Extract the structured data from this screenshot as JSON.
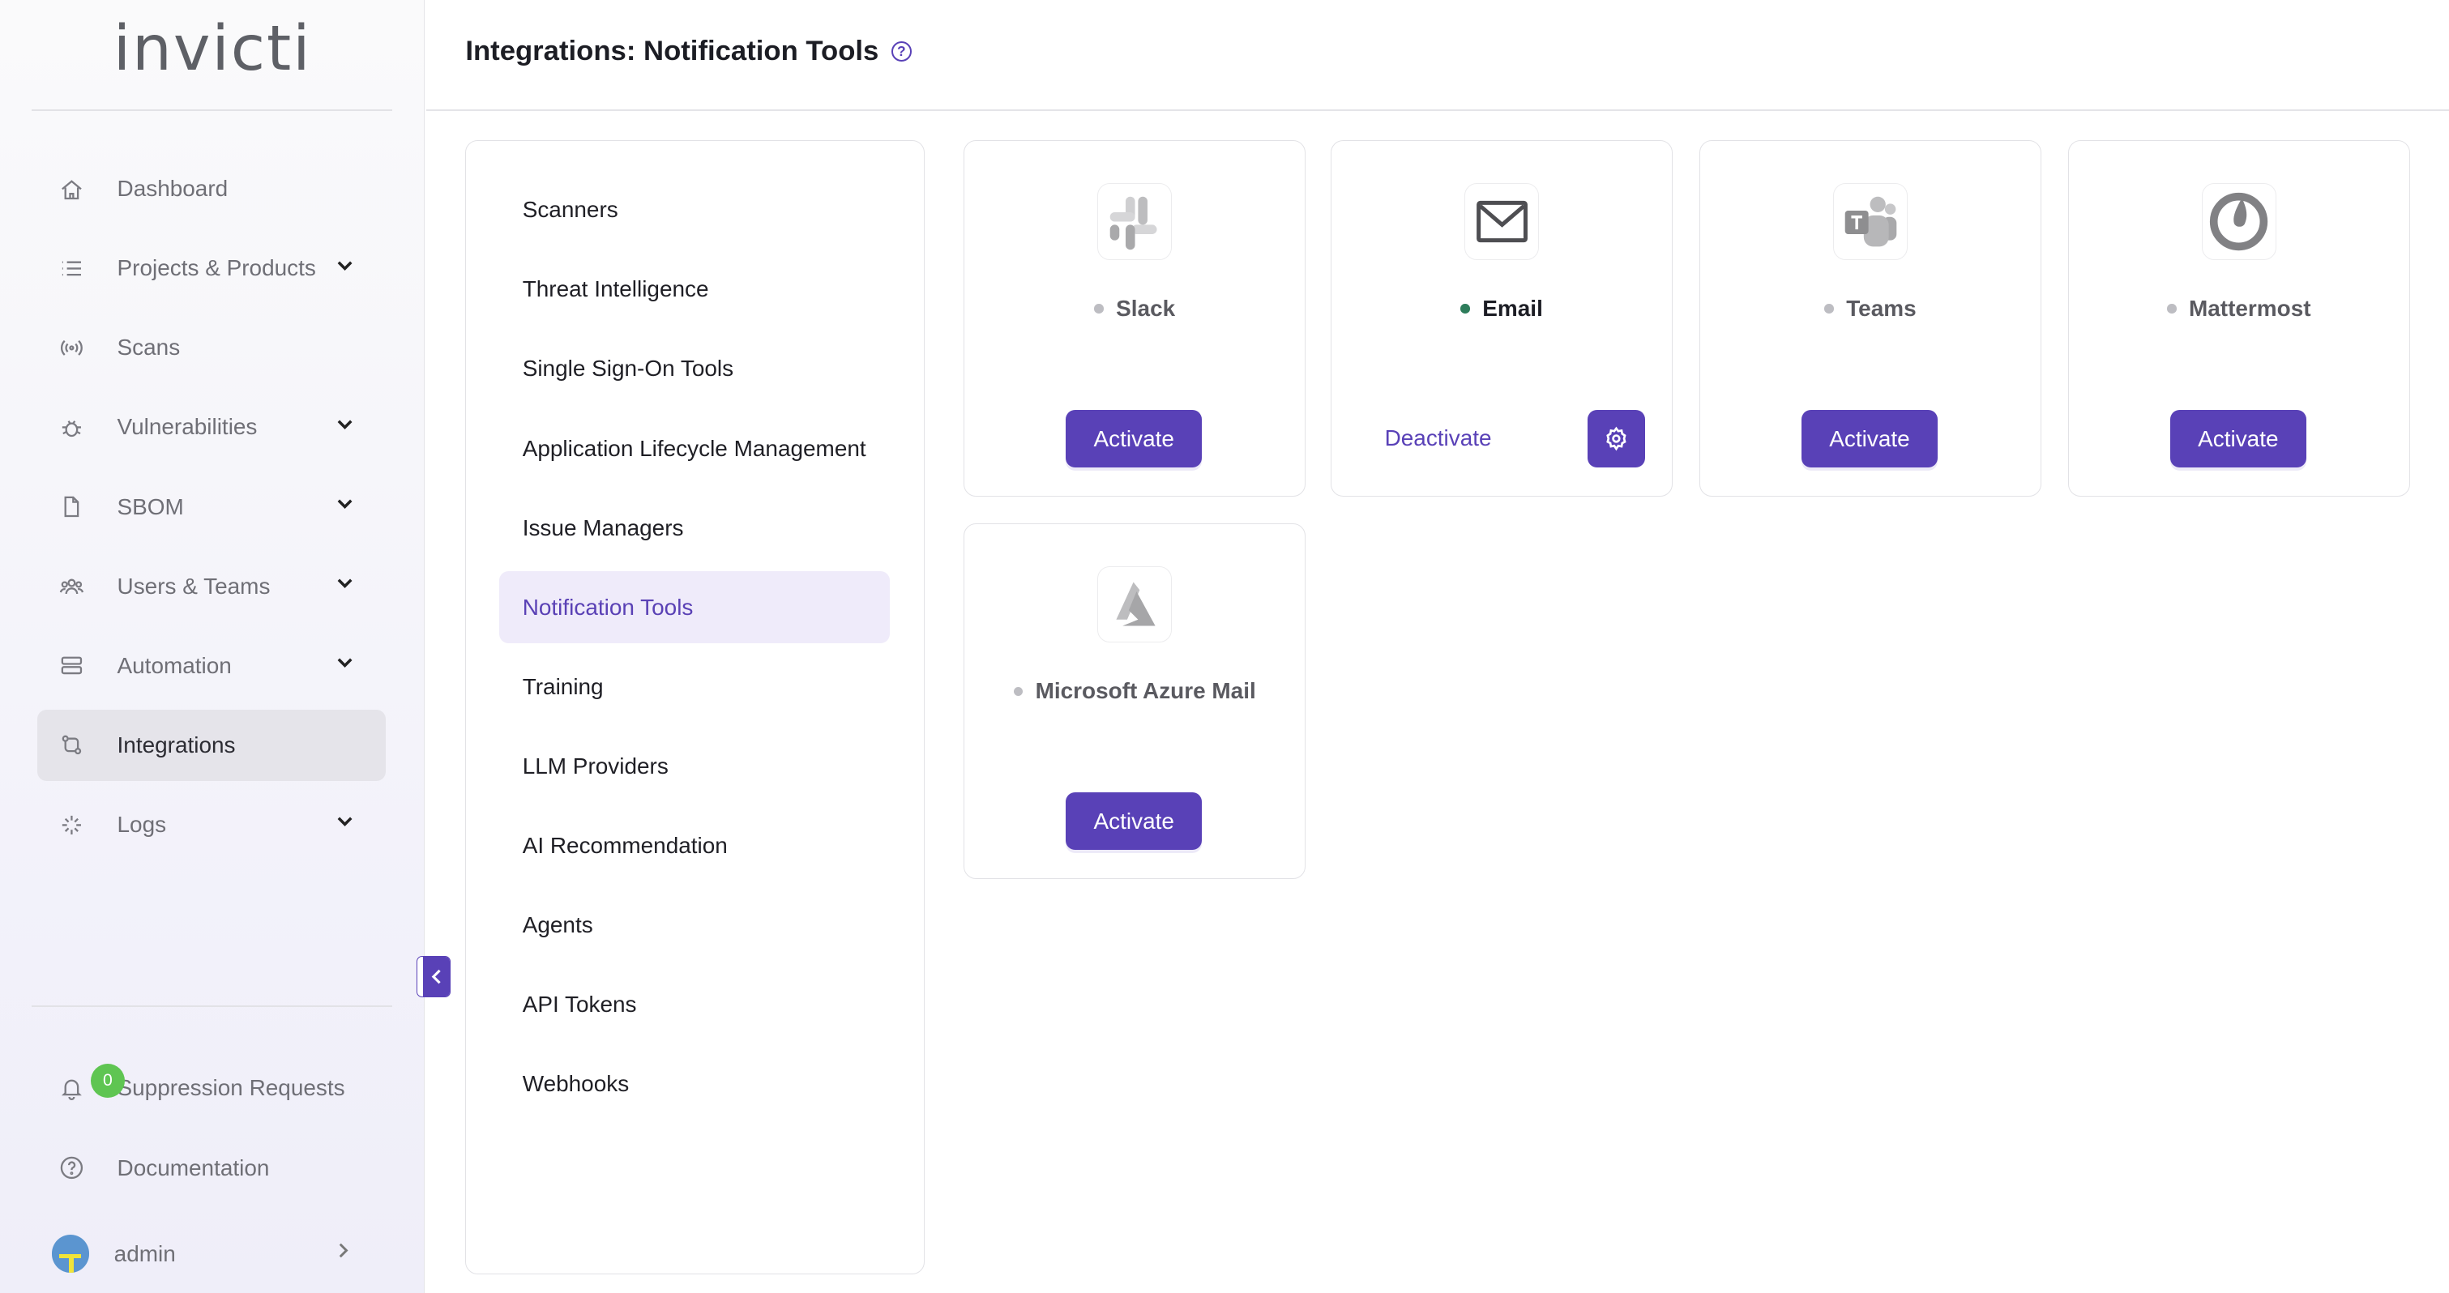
{
  "brand": "invicti",
  "sidebar": {
    "items": [
      {
        "label": "Dashboard",
        "icon": "home-icon"
      },
      {
        "label": "Projects & Products",
        "icon": "list-icon",
        "expandable": true
      },
      {
        "label": "Scans",
        "icon": "broadcast-icon"
      },
      {
        "label": "Vulnerabilities",
        "icon": "bug-icon",
        "expandable": true
      },
      {
        "label": "SBOM",
        "icon": "file-icon",
        "expandable": true
      },
      {
        "label": "Users & Teams",
        "icon": "users-icon",
        "expandable": true
      },
      {
        "label": "Automation",
        "icon": "server-icon",
        "expandable": true
      },
      {
        "label": "Integrations",
        "icon": "integration-icon",
        "active": true
      },
      {
        "label": "Logs",
        "icon": "sparkle-icon",
        "expandable": true
      }
    ],
    "suppression": {
      "label": "Suppression Requests",
      "count": "0"
    },
    "documentation": "Documentation",
    "user": "admin"
  },
  "header": {
    "title": "Integrations: Notification Tools",
    "help": "?"
  },
  "categories": [
    "Scanners",
    "Threat Intelligence",
    "Single Sign-On Tools",
    "Application Lifecycle Management",
    "Issue Managers",
    "Notification Tools",
    "Training",
    "LLM Providers",
    "AI Recommendation",
    "Agents",
    "API Tokens",
    "Webhooks"
  ],
  "active_category": "Notification Tools",
  "integrations": [
    {
      "name": "Slack",
      "status": "inactive",
      "action": "Activate"
    },
    {
      "name": "Email",
      "status": "active",
      "action": "Deactivate"
    },
    {
      "name": "Teams",
      "status": "inactive",
      "action": "Activate"
    },
    {
      "name": "Mattermost",
      "status": "inactive",
      "action": "Activate"
    },
    {
      "name": "Microsoft Azure Mail",
      "status": "inactive",
      "action": "Activate"
    }
  ],
  "colors": {
    "accent": "#5941b7",
    "active_dot": "#2e7d5b",
    "inactive_dot": "#bdbdc2",
    "badge": "#5fc552"
  }
}
